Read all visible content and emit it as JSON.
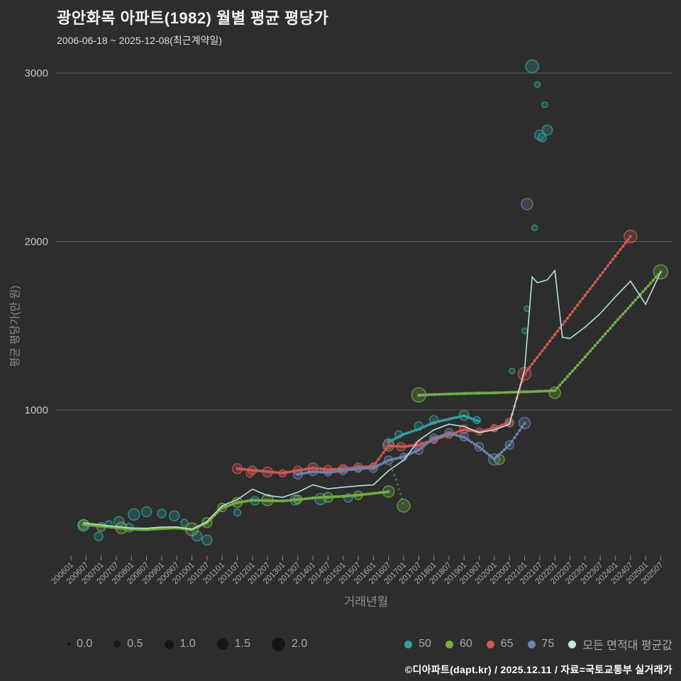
{
  "header": {
    "title": "광안화목 아파트(1982) 월별 평균 평당가",
    "subtitle": "2006-06-18 ~ 2025-12-08(최근계약일)"
  },
  "footer": {
    "credit": "©디아파트(dapt.kr) / 2025.12.11 / 자료=국토교통부 실거래가"
  },
  "colors": {
    "background": "#2d2d2d",
    "gridline": "#595959",
    "tick_text": "#ababab",
    "axis_title": "#8f8f8f"
  },
  "legend": {
    "size_dot_color": "#161616",
    "sizes": [
      {
        "label": "0.0",
        "r": 2
      },
      {
        "label": "0.5",
        "r": 5
      },
      {
        "label": "1.0",
        "r": 6.5
      },
      {
        "label": "1.5",
        "r": 8
      },
      {
        "label": "2.0",
        "r": 9.5
      }
    ]
  },
  "chart_data": {
    "type": "scatter",
    "title": "광안화목 아파트(1982) 월별 평균 평당가",
    "xlabel": "거래년월",
    "ylabel": "평균 평당가(만 원)",
    "ylim": [
      150,
      3150
    ],
    "yticks": [
      1000,
      2000,
      3000
    ],
    "grid": true,
    "legend_position": "bottom",
    "size_legend_values": [
      "0.0",
      "0.5",
      "1.0",
      "1.5",
      "2.0"
    ],
    "xticks": [
      "200601",
      "200607",
      "200701",
      "200707",
      "200801",
      "200807",
      "200901",
      "200907",
      "201001",
      "201007",
      "201101",
      "201107",
      "201201",
      "201207",
      "201301",
      "201307",
      "201401",
      "201407",
      "201501",
      "201507",
      "201601",
      "201607",
      "201701",
      "201707",
      "201801",
      "201807",
      "201901",
      "201907",
      "202001",
      "202007",
      "202101",
      "202107",
      "202201",
      "202207",
      "202301",
      "202307",
      "202401",
      "202407",
      "202501",
      "202507"
    ],
    "series": [
      {
        "name": "50",
        "color": "#35a0a0",
        "bubbles": [
          [
            "200606",
            315,
            8
          ],
          [
            "200612",
            250,
            6
          ],
          [
            "200704",
            322,
            5
          ],
          [
            "200708",
            338,
            7
          ],
          [
            "200712",
            302,
            6
          ],
          [
            "200802",
            380,
            8
          ],
          [
            "200807",
            396,
            7
          ],
          [
            "200901",
            386,
            6
          ],
          [
            "200906",
            372,
            7
          ],
          [
            "200910",
            330,
            5
          ],
          [
            "201003",
            252,
            7
          ],
          [
            "201007",
            228,
            7
          ],
          [
            "201107",
            392,
            5
          ],
          [
            "201202",
            462,
            6
          ],
          [
            "201306",
            466,
            7
          ],
          [
            "201404",
            472,
            8
          ],
          [
            "201503",
            478,
            6
          ],
          [
            "201607",
            800,
            7
          ],
          [
            "201611",
            856,
            5
          ],
          [
            "201707",
            905,
            6
          ],
          [
            "201801",
            942,
            6
          ],
          [
            "201901",
            968,
            7
          ],
          [
            "201906",
            940,
            5
          ],
          [
            "202001",
            892,
            5
          ],
          [
            "202007",
            922,
            5
          ],
          [
            "202008",
            1232,
            4
          ],
          [
            "202101",
            1470,
            4
          ],
          [
            "202102",
            1602,
            4
          ],
          [
            "202104",
            3040,
            9
          ],
          [
            "202105",
            2082,
            4
          ],
          [
            "202106",
            2932,
            4
          ],
          [
            "202107",
            2632,
            7
          ],
          [
            "202108",
            2618,
            6
          ],
          [
            "202109",
            2812,
            4
          ],
          [
            "202110",
            2662,
            7
          ]
        ],
        "lines": [
          [
            [
              "201607",
              810
            ],
            [
              "201701",
              856
            ],
            [
              "201707",
              886
            ],
            [
              "201801",
              926
            ],
            [
              "201807",
              946
            ],
            [
              "201901",
              966
            ],
            [
              "201907",
              932
            ]
          ]
        ]
      },
      {
        "name": "60",
        "color": "#74b044",
        "bubbles": [
          [
            "200606",
            320,
            7
          ],
          [
            "200701",
            306,
            6
          ],
          [
            "200709",
            300,
            8
          ],
          [
            "201001",
            292,
            9
          ],
          [
            "201007",
            332,
            7
          ],
          [
            "201101",
            422,
            6
          ],
          [
            "201107",
            452,
            7
          ],
          [
            "201207",
            466,
            8
          ],
          [
            "201307",
            470,
            6
          ],
          [
            "201407",
            482,
            7
          ],
          [
            "201507",
            494,
            6
          ],
          [
            "201607",
            516,
            8
          ],
          [
            "201701",
            432,
            9
          ],
          [
            "201707",
            1090,
            10
          ],
          [
            "202003",
            706,
            7
          ],
          [
            "202201",
            1102,
            8
          ],
          [
            "202507",
            1820,
            10
          ]
        ],
        "lines": [
          [
            [
              "200606",
              320
            ],
            [
              "200612",
              312
            ],
            [
              "200707",
              302
            ],
            [
              "200801",
              292
            ],
            [
              "200807",
              290
            ],
            [
              "200901",
              296
            ],
            [
              "200907",
              300
            ],
            [
              "201001",
              290
            ],
            [
              "201007",
              330
            ],
            [
              "201101",
              420
            ],
            [
              "201107",
              450
            ],
            [
              "201201",
              465
            ],
            [
              "201207",
              462
            ],
            [
              "201301",
              460
            ],
            [
              "201307",
              468
            ],
            [
              "201401",
              478
            ],
            [
              "201407",
              483
            ],
            [
              "201501",
              488
            ],
            [
              "201507",
              495
            ],
            [
              "201601",
              505
            ],
            [
              "201607",
              515
            ]
          ],
          [
            [
              "201707",
              1088
            ],
            [
              "201801",
              1092
            ],
            [
              "201807",
              1095
            ],
            [
              "201901",
              1098
            ],
            [
              "201907",
              1100
            ],
            [
              "202001",
              1102
            ],
            [
              "202007",
              1105
            ],
            [
              "202101",
              1108
            ],
            [
              "202107",
              1111
            ],
            [
              "202201",
              1115
            ]
          ],
          [
            [
              "202201",
              1115
            ],
            [
              "202301",
              1315
            ],
            [
              "202401",
              1520
            ],
            [
              "202501",
              1720
            ],
            [
              "202507",
              1820
            ]
          ]
        ],
        "dashed": [
          [
            [
              "201607",
              700
            ],
            [
              "201610",
              588
            ],
            [
              "201701",
              434
            ]
          ]
        ]
      },
      {
        "name": "65",
        "color": "#d15b54",
        "bubbles": [
          [
            "201107",
            652,
            7
          ],
          [
            "201112",
            622,
            5
          ],
          [
            "201201",
            642,
            6
          ],
          [
            "201207",
            632,
            7
          ],
          [
            "201301",
            624,
            5
          ],
          [
            "201307",
            642,
            6
          ],
          [
            "201401",
            656,
            7
          ],
          [
            "201407",
            646,
            6
          ],
          [
            "201501",
            652,
            6
          ],
          [
            "201507",
            660,
            6
          ],
          [
            "201601",
            666,
            5
          ],
          [
            "201607",
            790,
            8
          ],
          [
            "201612",
            782,
            6
          ],
          [
            "201707",
            792,
            6
          ],
          [
            "201801",
            822,
            5
          ],
          [
            "201807",
            852,
            5
          ],
          [
            "201901",
            886,
            6
          ],
          [
            "201907",
            872,
            5
          ],
          [
            "202001",
            892,
            5
          ],
          [
            "202007",
            926,
            6
          ],
          [
            "202101",
            1215,
            9
          ],
          [
            "202407",
            2030,
            9
          ]
        ],
        "lines": [
          [
            [
              "201107",
              652
            ],
            [
              "201201",
              643
            ],
            [
              "201207",
              634
            ],
            [
              "201301",
              626
            ],
            [
              "201307",
              641
            ],
            [
              "201401",
              656
            ],
            [
              "201407",
              646
            ],
            [
              "201501",
              651
            ],
            [
              "201507",
              659
            ],
            [
              "201601",
              667
            ],
            [
              "201607",
              788
            ],
            [
              "201701",
              783
            ],
            [
              "201707",
              793
            ],
            [
              "201801",
              823
            ],
            [
              "201807",
              853
            ],
            [
              "201901",
              883
            ],
            [
              "201907",
              871
            ],
            [
              "202001",
              893
            ],
            [
              "202007",
              926
            ],
            [
              "202101",
              1215
            ],
            [
              "202201",
              1448
            ],
            [
              "202301",
              1681
            ],
            [
              "202401",
              1914
            ],
            [
              "202407",
              2030
            ]
          ]
        ]
      },
      {
        "name": "75",
        "color": "#6e84ae",
        "bubbles": [
          [
            "201307",
            616,
            6
          ],
          [
            "201401",
            636,
            6
          ],
          [
            "201407",
            630,
            5
          ],
          [
            "201501",
            642,
            6
          ],
          [
            "201507",
            652,
            5
          ],
          [
            "201601",
            656,
            6
          ],
          [
            "201607",
            702,
            6
          ],
          [
            "201701",
            722,
            5
          ],
          [
            "201707",
            762,
            6
          ],
          [
            "201801",
            832,
            6
          ],
          [
            "201807",
            864,
            6
          ],
          [
            "201901",
            842,
            6
          ],
          [
            "201907",
            782,
            6
          ],
          [
            "202001",
            706,
            8
          ],
          [
            "202007",
            792,
            6
          ],
          [
            "202101",
            922,
            8
          ],
          [
            "202102",
            2222,
            8
          ]
        ],
        "lines": [
          [
            [
              "201307",
              618
            ],
            [
              "201401",
              634
            ],
            [
              "201407",
              629
            ],
            [
              "201501",
              641
            ],
            [
              "201507",
              651
            ],
            [
              "201601",
              657
            ],
            [
              "201607",
              701
            ],
            [
              "201701",
              723
            ],
            [
              "201707",
              763
            ],
            [
              "201801",
              833
            ],
            [
              "201807",
              861
            ],
            [
              "201901",
              839
            ],
            [
              "201907",
              779
            ],
            [
              "202001",
              709
            ],
            [
              "202007",
              793
            ],
            [
              "202101",
              921
            ]
          ]
        ]
      },
      {
        "name": "모든 면적대 평균값",
        "color": "#c2eae8",
        "markers": false,
        "lines": [
          [
            [
              "200606",
              330
            ],
            [
              "200612",
              320
            ],
            [
              "200707",
              308
            ],
            [
              "200801",
              300
            ],
            [
              "200807",
              298
            ],
            [
              "200901",
              305
            ],
            [
              "200907",
              306
            ],
            [
              "201001",
              292
            ],
            [
              "201007",
              338
            ],
            [
              "201101",
              432
            ],
            [
              "201107",
              468
            ],
            [
              "201201",
              530
            ],
            [
              "201207",
              492
            ],
            [
              "201301",
              482
            ],
            [
              "201307",
              512
            ],
            [
              "201401",
              556
            ],
            [
              "201407",
              532
            ],
            [
              "201501",
              542
            ],
            [
              "201507",
              550
            ],
            [
              "201601",
              556
            ],
            [
              "201607",
              640
            ],
            [
              "201701",
              702
            ],
            [
              "201707",
              820
            ],
            [
              "201801",
              882
            ],
            [
              "201807",
              916
            ],
            [
              "201901",
              902
            ],
            [
              "201907",
              866
            ],
            [
              "202001",
              882
            ],
            [
              "202007",
              916
            ],
            [
              "202101",
              1240
            ],
            [
              "202104",
              1790
            ],
            [
              "202106",
              1756
            ],
            [
              "202110",
              1772
            ],
            [
              "202201",
              1828
            ],
            [
              "202204",
              1432
            ],
            [
              "202207",
              1425
            ],
            [
              "202301",
              1492
            ],
            [
              "202307",
              1572
            ],
            [
              "202401",
              1672
            ],
            [
              "202407",
              1765
            ],
            [
              "202501",
              1628
            ],
            [
              "202507",
              1820
            ]
          ]
        ]
      }
    ]
  }
}
